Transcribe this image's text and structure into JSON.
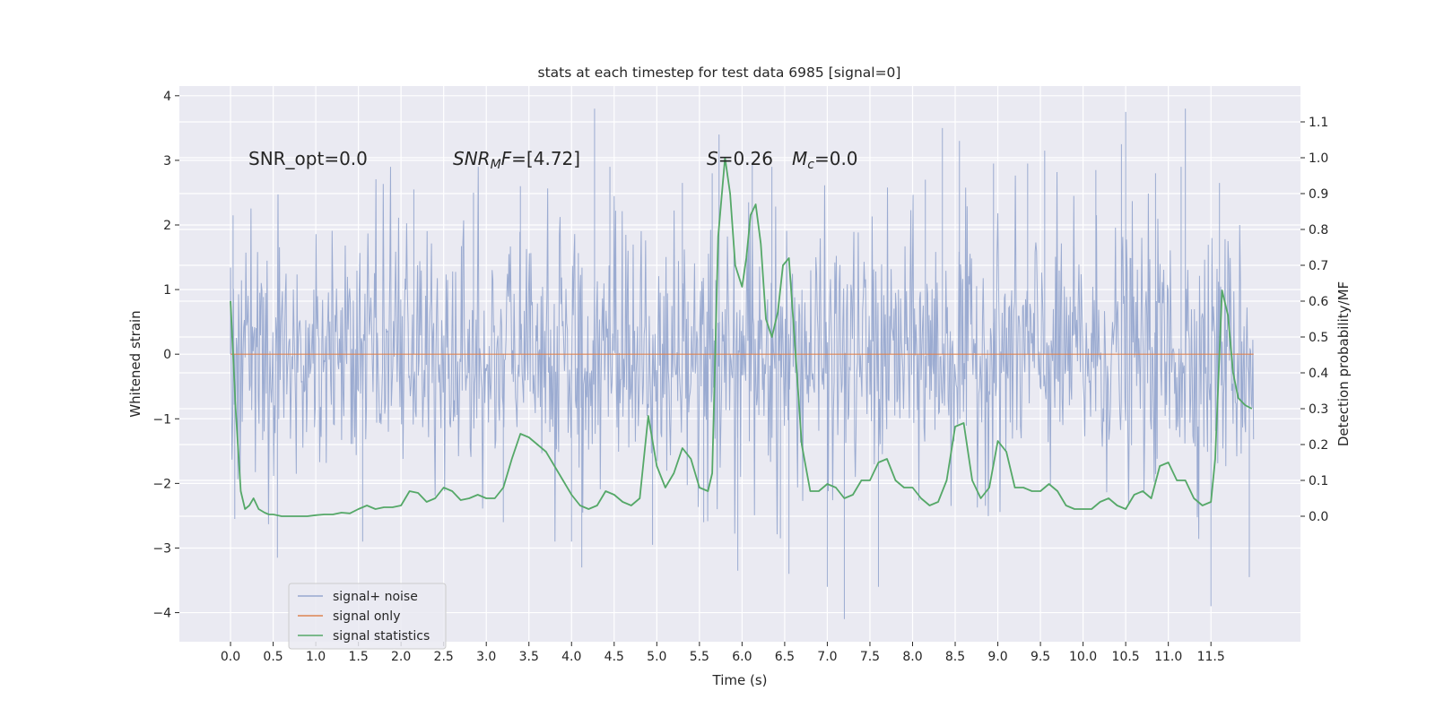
{
  "chart_data": {
    "type": "line",
    "title": "stats at each timestep for test data 6985 [signal=0]",
    "xlabel": "Time (s)",
    "ylabel": "Whitened strain",
    "ylabel_right": "Detection probability/MF",
    "xlim": [
      -0.6,
      12.55
    ],
    "ylim": [
      -4.45,
      4.15
    ],
    "ylim_right": [
      -0.35,
      1.2
    ],
    "x_ticks": [
      "0.0",
      "0.5",
      "1.0",
      "1.5",
      "2.0",
      "2.5",
      "3.0",
      "3.5",
      "4.0",
      "4.5",
      "5.0",
      "5.5",
      "6.0",
      "6.5",
      "7.0",
      "7.5",
      "8.0",
      "8.5",
      "9.0",
      "9.5",
      "10.0",
      "10.5",
      "11.0",
      "11.5"
    ],
    "y_ticks": [
      "−4",
      "−3",
      "−2",
      "−1",
      "0",
      "1",
      "2",
      "3",
      "4"
    ],
    "y_right_ticks": [
      "0.0",
      "0.1",
      "0.2",
      "0.3",
      "0.4",
      "0.5",
      "0.6",
      "0.7",
      "0.8",
      "0.9",
      "1.0",
      "1.1"
    ],
    "grid": true,
    "legend_position": "lower-left",
    "annotations": {
      "snr_opt": "SNR_opt=0.0",
      "snr_mf_var": "SNR",
      "snr_mf_sub": "M",
      "snr_mf_var2": "F",
      "snr_mf_val": "=[4.72]",
      "s_var": "S",
      "s_val": "=0.26",
      "mc_var": "M",
      "mc_sub": "c",
      "mc_val": "=0.0"
    },
    "series": [
      {
        "name": "signal+ noise",
        "color": "#97a8cf",
        "axis": "left",
        "note": "whitened noise, approx N(0,1), duration 0 to 12 s",
        "x_range": [
          0.0,
          12.0
        ],
        "spikes": [
          [
            0.03,
            2.15
          ],
          [
            0.05,
            -2.55
          ],
          [
            0.55,
            -3.15
          ],
          [
            1.55,
            -2.9
          ],
          [
            2.15,
            2.55
          ],
          [
            2.85,
            2.5
          ],
          [
            3.2,
            -2.6
          ],
          [
            3.4,
            2.6
          ],
          [
            4.0,
            -2.9
          ],
          [
            4.12,
            -3.3
          ],
          [
            4.27,
            3.8
          ],
          [
            4.45,
            2.9
          ],
          [
            4.95,
            -2.95
          ],
          [
            5.3,
            2.65
          ],
          [
            5.55,
            -2.6
          ],
          [
            5.65,
            2.8
          ],
          [
            5.73,
            3.4
          ],
          [
            5.95,
            -3.35
          ],
          [
            6.12,
            2.95
          ],
          [
            6.35,
            2.9
          ],
          [
            6.45,
            -2.85
          ],
          [
            6.55,
            -3.4
          ],
          [
            7.0,
            -3.6
          ],
          [
            7.2,
            -4.1
          ],
          [
            7.6,
            -3.6
          ],
          [
            8.15,
            2.7
          ],
          [
            8.35,
            3.5
          ],
          [
            8.55,
            3.3
          ],
          [
            8.95,
            2.95
          ],
          [
            9.35,
            2.95
          ],
          [
            9.55,
            3.15
          ],
          [
            10.15,
            2.85
          ],
          [
            10.45,
            3.25
          ],
          [
            10.5,
            3.75
          ],
          [
            10.85,
            2.8
          ],
          [
            11.15,
            2.9
          ],
          [
            11.2,
            3.8
          ],
          [
            11.5,
            -3.9
          ],
          [
            11.6,
            2.65
          ],
          [
            11.95,
            -3.45
          ]
        ]
      },
      {
        "name": "signal only",
        "color": "#dd8452",
        "axis": "left",
        "x": [
          0.0,
          12.0
        ],
        "y": [
          0.0,
          0.0
        ]
      },
      {
        "name": "signal statistics",
        "color": "#55a868",
        "axis": "right",
        "x": [
          0.0,
          0.06,
          0.12,
          0.17,
          0.22,
          0.27,
          0.33,
          0.4,
          0.45,
          0.5,
          0.6,
          0.7,
          0.8,
          0.9,
          1.0,
          1.1,
          1.2,
          1.3,
          1.4,
          1.5,
          1.6,
          1.7,
          1.8,
          1.9,
          2.0,
          2.1,
          2.2,
          2.3,
          2.4,
          2.5,
          2.6,
          2.7,
          2.8,
          2.9,
          3.0,
          3.1,
          3.2,
          3.3,
          3.4,
          3.5,
          3.6,
          3.7,
          3.8,
          3.9,
          4.0,
          4.1,
          4.2,
          4.3,
          4.4,
          4.5,
          4.6,
          4.7,
          4.8,
          4.9,
          5.0,
          5.1,
          5.2,
          5.3,
          5.4,
          5.5,
          5.6,
          5.65,
          5.72,
          5.8,
          5.86,
          5.92,
          6.0,
          6.05,
          6.1,
          6.16,
          6.22,
          6.28,
          6.35,
          6.42,
          6.48,
          6.55,
          6.62,
          6.7,
          6.8,
          6.9,
          7.0,
          7.1,
          7.2,
          7.3,
          7.4,
          7.5,
          7.6,
          7.7,
          7.8,
          7.9,
          8.0,
          8.1,
          8.2,
          8.3,
          8.4,
          8.5,
          8.6,
          8.7,
          8.8,
          8.9,
          9.0,
          9.1,
          9.2,
          9.3,
          9.4,
          9.5,
          9.6,
          9.7,
          9.8,
          9.9,
          10.0,
          10.1,
          10.2,
          10.3,
          10.4,
          10.5,
          10.6,
          10.7,
          10.8,
          10.9,
          11.0,
          11.1,
          11.2,
          11.3,
          11.4,
          11.5,
          11.55,
          11.63,
          11.7,
          11.76,
          11.82,
          11.9,
          11.98
        ],
        "y": [
          0.6,
          0.3,
          0.07,
          0.02,
          0.03,
          0.05,
          0.02,
          0.01,
          0.005,
          0.005,
          0.0,
          0.0,
          0.0,
          0.0,
          0.003,
          0.005,
          0.005,
          0.01,
          0.008,
          0.02,
          0.03,
          0.02,
          0.025,
          0.025,
          0.03,
          0.07,
          0.065,
          0.04,
          0.05,
          0.08,
          0.07,
          0.045,
          0.05,
          0.06,
          0.05,
          0.05,
          0.08,
          0.16,
          0.23,
          0.22,
          0.2,
          0.18,
          0.14,
          0.1,
          0.06,
          0.03,
          0.02,
          0.03,
          0.07,
          0.06,
          0.04,
          0.03,
          0.05,
          0.28,
          0.14,
          0.08,
          0.12,
          0.19,
          0.16,
          0.08,
          0.07,
          0.12,
          0.78,
          1.0,
          0.9,
          0.7,
          0.64,
          0.72,
          0.84,
          0.87,
          0.76,
          0.55,
          0.5,
          0.57,
          0.7,
          0.72,
          0.48,
          0.2,
          0.07,
          0.07,
          0.09,
          0.08,
          0.05,
          0.06,
          0.1,
          0.1,
          0.15,
          0.16,
          0.1,
          0.08,
          0.08,
          0.05,
          0.03,
          0.04,
          0.1,
          0.25,
          0.26,
          0.1,
          0.05,
          0.08,
          0.21,
          0.18,
          0.08,
          0.08,
          0.07,
          0.07,
          0.09,
          0.07,
          0.03,
          0.02,
          0.02,
          0.02,
          0.04,
          0.05,
          0.03,
          0.02,
          0.06,
          0.07,
          0.05,
          0.14,
          0.15,
          0.1,
          0.1,
          0.05,
          0.03,
          0.04,
          0.16,
          0.63,
          0.56,
          0.4,
          0.33,
          0.31,
          0.3
        ]
      }
    ]
  }
}
